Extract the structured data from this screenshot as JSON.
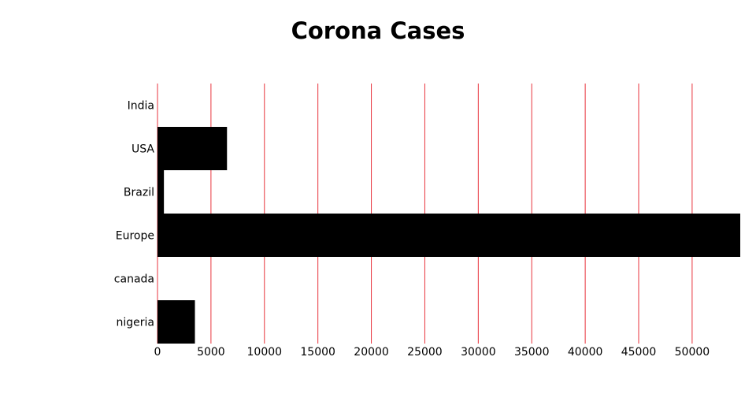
{
  "chart_data": {
    "type": "bar",
    "orientation": "horizontal",
    "title": "Corona Cases",
    "xlabel": "",
    "ylabel": "",
    "categories": [
      "India",
      "USA",
      "Brazil",
      "Europe",
      "canada",
      "nigeria"
    ],
    "values": [
      0,
      6500,
      600,
      54500,
      0,
      3500
    ],
    "xlim": [
      0,
      54500
    ],
    "xticks": [
      0,
      5000,
      10000,
      15000,
      20000,
      25000,
      30000,
      35000,
      40000,
      45000,
      50000
    ],
    "grid": true,
    "legend": "none",
    "colors": {
      "bar": "#000000",
      "grid": "#e8333c",
      "text": "#000000",
      "background": "#ffffff"
    }
  }
}
